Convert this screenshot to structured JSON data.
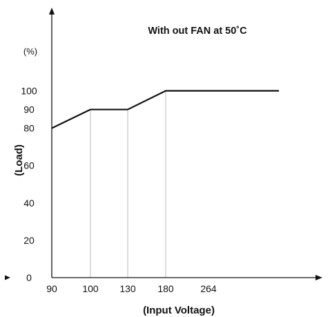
{
  "chart_data": {
    "type": "line",
    "title": "With out  FAN at 50˚C",
    "xlabel": "(Input Voltage)",
    "ylabel": "(Load)",
    "y_unit": "(%)",
    "x_ticks": [
      "90",
      "100",
      "130",
      "180",
      "264"
    ],
    "y_ticks": [
      "0",
      "20",
      "40",
      "60",
      "80",
      "90",
      "100"
    ],
    "reference_lines_x": [
      "100",
      "130",
      "180"
    ],
    "grid": false,
    "series": [
      {
        "points": [
          {
            "x": "90",
            "y": 80
          },
          {
            "x": "100",
            "y": 90
          },
          {
            "x": "130",
            "y": 90
          },
          {
            "x": "180",
            "y": 100
          },
          {
            "x": "264",
            "y": 100
          }
        ]
      }
    ],
    "colors": {
      "line": "#111111",
      "axis": "#111111",
      "reference": "#b8b8b8"
    }
  }
}
